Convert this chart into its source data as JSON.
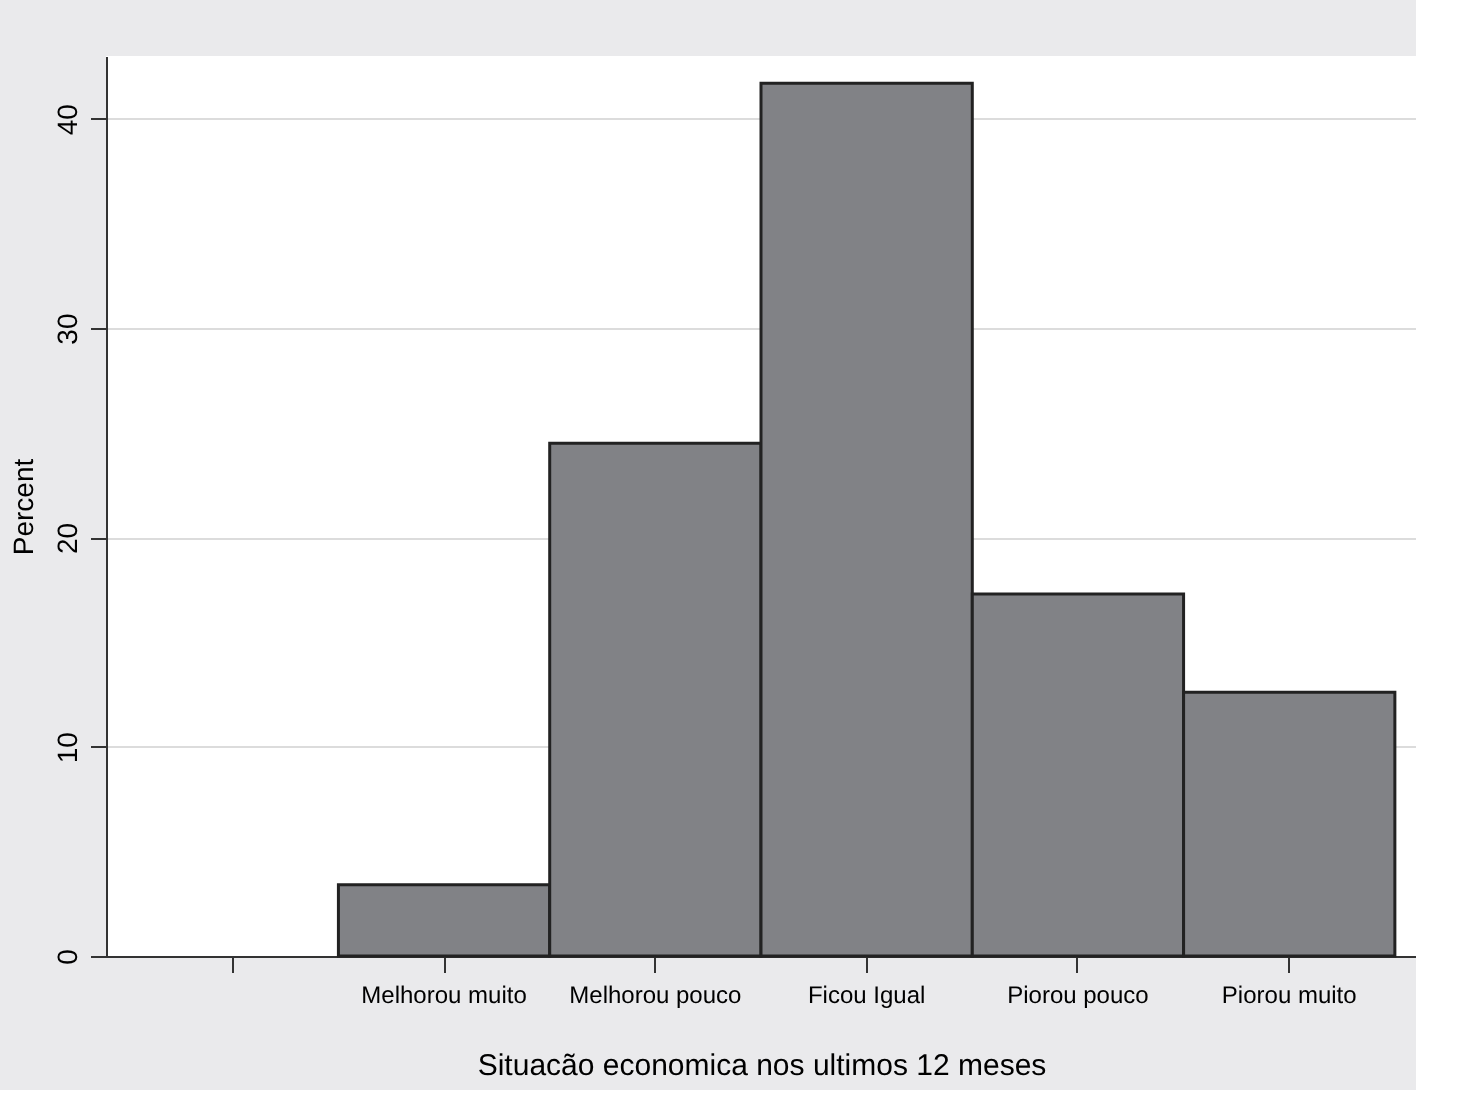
{
  "chart_data": {
    "type": "bar",
    "xlabel": "Situacão economica nos ultimos 12 meses",
    "ylabel": "Percent",
    "categories": [
      null,
      "Melhorou muito",
      "Melhorou pouco",
      "Ficou Igual",
      "Piorou pouco",
      "Piorou muito"
    ],
    "values": [
      null,
      3.4,
      24.5,
      41.7,
      17.3,
      12.6
    ],
    "color": "#818286",
    "ylim": [
      0,
      43
    ],
    "yticks": [
      0,
      10,
      20,
      30,
      40
    ],
    "grid": "y"
  }
}
